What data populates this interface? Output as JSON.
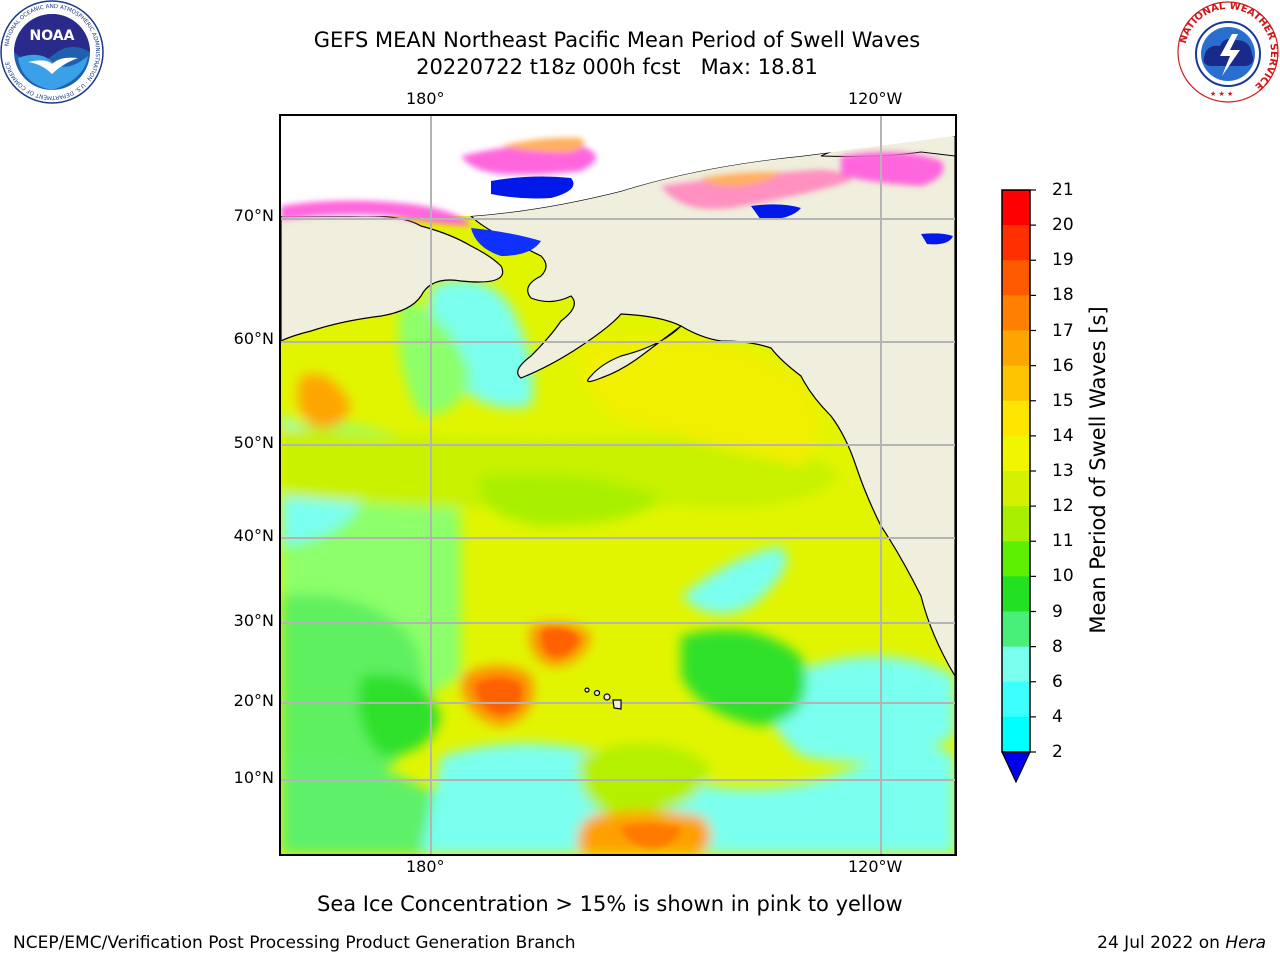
{
  "title": {
    "line1": "GEFS MEAN Northeast Pacific Mean Period of Swell Waves",
    "line2": "20220722 t18z 000h fcst   Max: 18.81"
  },
  "axes": {
    "lon_labels": [
      "180°",
      "120°W"
    ],
    "lat_labels": [
      "70°N",
      "60°N",
      "50°N",
      "40°N",
      "30°N",
      "20°N",
      "10°N"
    ]
  },
  "colorbar": {
    "title": "Mean Period of Swell Waves [s]",
    "ticks": [
      "21",
      "20",
      "19",
      "18",
      "17",
      "16",
      "15",
      "14",
      "13",
      "12",
      "11",
      "10",
      "9",
      "8",
      "6",
      "4",
      "2"
    ],
    "colors": [
      "#ff0000",
      "#ff3000",
      "#ff5a00",
      "#ff7f00",
      "#ffa500",
      "#ffc400",
      "#ffe600",
      "#f0f500",
      "#d2f000",
      "#a8f000",
      "#5cf000",
      "#22e022",
      "#48f07a",
      "#7affee",
      "#3cffff",
      "#00ffff",
      "#00ccff",
      "#0066ff"
    ],
    "extend_color": "#0000ee"
  },
  "map_colors": {
    "land": "#f0eedc",
    "ice_pink": "#ff66dd",
    "ice_orange": "#ffb060",
    "grid": "#b4b4b4"
  },
  "footnote": "Sea Ice Concentration > 15% is shown in pink to yellow",
  "credit": "NCEP/EMC/Verification Post Processing Product Generation Branch",
  "date": {
    "text": "24 Jul 2022 on ",
    "host": "Hera"
  },
  "logos": {
    "noaa": {
      "text": "NOAA",
      "ring": "NATIONAL OCEANIC AND ATMOSPHERIC ADMINISTRATION · U.S. DEPARTMENT OF COMMERCE"
    },
    "nws": {
      "ring": "NATIONAL WEATHER SERVICE"
    }
  }
}
